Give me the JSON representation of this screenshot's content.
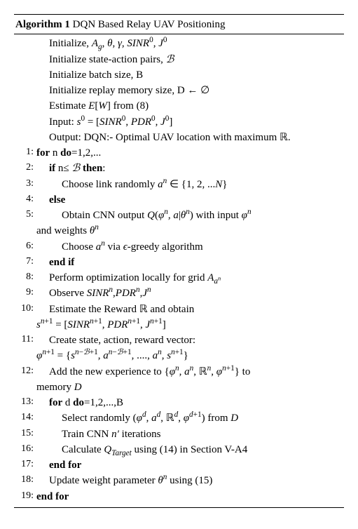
{
  "title": {
    "label": "Algorithm 1",
    "name": "DQN Based Relay UAV Positioning"
  },
  "fonts": {
    "body_family": "Times New Roman",
    "body_size_pt": 11,
    "lineno_size_pt": 10
  },
  "colors": {
    "text": "#000000",
    "background": "#ffffff",
    "rule": "#000000"
  },
  "init_lines": [
    {
      "html": "Initialize, <span class='it'>A<sub>g</sub></span>, <span class='it'>θ</span>, <span class='it'>γ</span>, <span class='it'>SINR</span><sup>0</sup>, <span class='it'>J</span><sup>0</sup>"
    },
    {
      "html": "Initialize state-action pairs, <span class='cal'>ℬ</span>"
    },
    {
      "html": "Initialize batch size, B"
    },
    {
      "html": "Initialize replay memory size, D ← ∅"
    },
    {
      "html": "Estimate <span class='it'>E</span>[<span class='it'>W</span>] from (8)"
    },
    {
      "html": "Input: <span class='it'>s</span><sup>0</sup> = [<span class='it'>SINR</span><sup>0</sup>, <span class='it'>PDR</span><sup>0</sup>, <span class='it'>J</span><sup>0</sup>]"
    },
    {
      "html": "Output: DQN:- Optimal UAV location with maximum <span class='bb'>ℝ</span>."
    }
  ],
  "lines": [
    {
      "no": "1:",
      "indent": 0,
      "html": "<span class='kw'>for</span> n <span class='kw'>do</span>=1,2,..."
    },
    {
      "no": "2:",
      "indent": 1,
      "html": "<span class='kw'>if</span> n≤ <span class='cal'>ℬ</span> <span class='kw'>then</span>:"
    },
    {
      "no": "3:",
      "indent": 2,
      "html": "Choose link randomly <span class='it'>a<sup>n</sup></span> ∈ {1, 2, ...<span class='it'>N</span>}"
    },
    {
      "no": "4:",
      "indent": 1,
      "html": "<span class='kw'>else</span>"
    },
    {
      "no": "5:",
      "indent": 2,
      "html": "Obtain CNN output <span class='it'>Q</span>(<span class='it'>φ<sup>n</sup></span>, <span class='it'>a</span>|<span class='it'>θ<sup>n</sup></span>) with input <span class='it'>φ<sup>n</sup></span>",
      "cont": "and weights <span class='it'>θ<sup>n</sup></span>"
    },
    {
      "no": "6:",
      "indent": 2,
      "html": "Choose <span class='it'>a<sup>n</sup></span> via <span class='it'>ϵ</span>-greedy algorithm"
    },
    {
      "no": "7:",
      "indent": 1,
      "html": "<span class='kw'>end if</span>"
    },
    {
      "no": "8:",
      "indent": 1,
      "html": "Perform optimization locally for grid <span class='it'>A<sub>a<sup>n</sup></sub></span>"
    },
    {
      "no": "9:",
      "indent": 1,
      "html": "Observe <span class='it'>SINR<sup>n</sup></span>,<span class='it'>PDR<sup>n</sup></span>,<span class='it'>J<sup>n</sup></span>"
    },
    {
      "no": "10:",
      "indent": 1,
      "html": "Estimate the Reward <span class='bb'>ℝ</span> and obtain",
      "cont": "<span class='it'>s</span><sup><span class='it'>n</span>+1</sup> = [<span class='it'>SINR</span><sup><span class='it'>n</span>+1</sup>, <span class='it'>PDR</span><sup><span class='it'>n</span>+1</sup>, <span class='it'>J</span><sup><span class='it'>n</span>+1</sup>]"
    },
    {
      "no": "11:",
      "indent": 1,
      "html": "Create state, action, reward vector:",
      "cont": "<span class='it'>φ</span><sup><span class='it'>n</span>+1</sup> = {<span class='it'>s</span><sup><span class='it'>n</span>−<span class='cal'>ℬ</span>+1</sup>, <span class='it'>a</span><sup><span class='it'>n</span>−<span class='cal'>ℬ</span>+1</sup>, ...., <span class='it'>a<sup>n</sup></span>, <span class='it'>s</span><sup><span class='it'>n</span>+1</sup>}"
    },
    {
      "no": "12:",
      "indent": 1,
      "html": "Add the new experience to {<span class='it'>φ<sup>n</sup></span>, <span class='it'>a<sup>n</sup></span>, <span class='bb'>ℝ</span><sup><span class='it'>n</span></sup>, <span class='it'>φ</span><sup><span class='it'>n</span>+1</sup>} to",
      "cont": "memory <span class='it'>D</span>"
    },
    {
      "no": "13:",
      "indent": 1,
      "html": "<span class='kw'>for</span> d <span class='kw'>do</span>=1,2,...,B"
    },
    {
      "no": "14:",
      "indent": 2,
      "html": "Select randomly (<span class='it'>φ<sup>d</sup></span>, <span class='it'>a<sup>d</sup></span>, <span class='bb'>ℝ</span><sup><span class='it'>d</span></sup>, <span class='it'>φ</span><sup><span class='it'>d</span>+1</sup>) from <span class='it'>D</span>"
    },
    {
      "no": "15:",
      "indent": 2,
      "html": "Train CNN <span class='it'>n′</span> iterations"
    },
    {
      "no": "16:",
      "indent": 2,
      "html": "Calculate <span class='it'>Q<sub>Target</sub></span> using (14) in Section V-A4"
    },
    {
      "no": "17:",
      "indent": 1,
      "html": "<span class='kw'>end for</span>"
    },
    {
      "no": "18:",
      "indent": 1,
      "html": "Update weight parameter <span class='it'>θ<sup>n</sup></span> using (15)"
    },
    {
      "no": "19:",
      "indent": 0,
      "html": "<span class='kw'>end for</span>"
    }
  ]
}
